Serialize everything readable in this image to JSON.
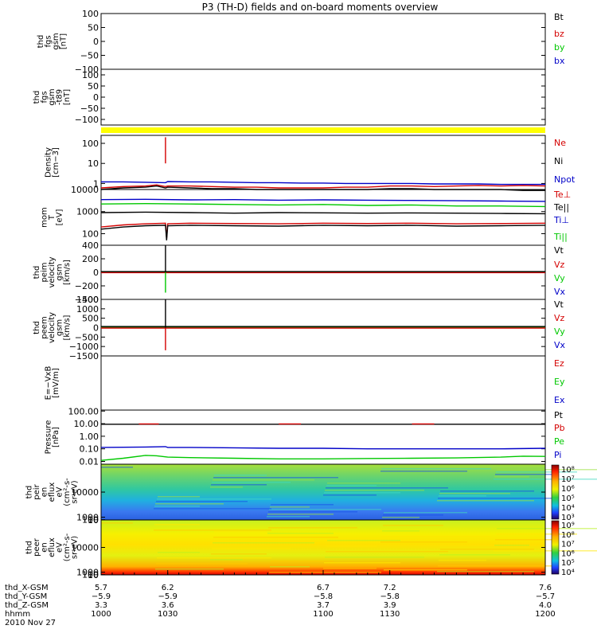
{
  "title": "P3 (TH-D) fields and on-board moments overview",
  "colors": {
    "black": "#000000",
    "red": "#d40000",
    "green": "#00c800",
    "blue": "#0000c8",
    "yellow": "#ffff00"
  },
  "chart_data": [
    {
      "type": "line",
      "id": "fgs1",
      "ylabel": [
        "thd",
        "fgs",
        "gsm",
        "[nT]"
      ],
      "ylim": [
        -100,
        100
      ],
      "yticks": [
        "100",
        "50",
        "0",
        "−50",
        "−100"
      ],
      "ytick_values": [
        100,
        50,
        0,
        -50,
        -100
      ],
      "legend": [
        {
          "name": "Bt",
          "color": "#000000"
        },
        {
          "name": "bz",
          "color": "#d40000"
        },
        {
          "name": "by",
          "color": "#00c800"
        },
        {
          "name": "bx",
          "color": "#0000c8"
        }
      ],
      "series": []
    },
    {
      "type": "line",
      "id": "fgs2",
      "ylabel": [
        "thd",
        "fgs",
        "gsm",
        "-t89",
        "[nT]"
      ],
      "ylim": [
        -125,
        125
      ],
      "yticks": [
        "100",
        "50",
        "0",
        "−50",
        "−100"
      ],
      "ytick_values": [
        100,
        50,
        0,
        -50,
        -100
      ],
      "legend": [],
      "series": []
    },
    {
      "type": "bar",
      "id": "mode-bar",
      "ylabel": [],
      "legend": [],
      "color": "#ffff00"
    },
    {
      "type": "line",
      "id": "density",
      "scale": "log",
      "ylabel": [
        "Density",
        "[cm−3]"
      ],
      "ylim": [
        0.5,
        250
      ],
      "yticks": [
        "100",
        "10",
        "1"
      ],
      "ytick_values": [
        100,
        10,
        1
      ],
      "legend": [
        {
          "name": "Ne",
          "color": "#d40000"
        },
        {
          "name": "Ni",
          "color": "#000000"
        },
        {
          "name": "Npot",
          "color": "#0000c8"
        }
      ],
      "series": [
        {
          "color": "#0000c8",
          "x": [
            1000,
            1010,
            1020,
            1029,
            1030,
            1040,
            1050,
            1060,
            1070,
            1080,
            1090,
            1100,
            1110,
            1120,
            1130,
            1140,
            1150,
            1160,
            1170,
            1180,
            1190,
            1200
          ],
          "values": [
            1.2,
            1.2,
            1.15,
            1.1,
            1.25,
            1.2,
            1.2,
            1.15,
            1.1,
            1.1,
            1.05,
            1.05,
            1.0,
            1.0,
            1.0,
            1.0,
            0.95,
            0.95,
            0.95,
            0.9,
            0.9,
            0.9
          ]
        },
        {
          "color": "#d40000",
          "x": [
            1000,
            1010,
            1020,
            1025,
            1029,
            1030,
            1040,
            1050,
            1060,
            1070,
            1080,
            1090,
            1100,
            1110,
            1120,
            1130,
            1140,
            1150,
            1160,
            1170,
            1180,
            1190,
            1200
          ],
          "values": [
            0.6,
            0.7,
            0.75,
            0.85,
            0.7,
            0.75,
            0.75,
            0.7,
            0.65,
            0.65,
            0.6,
            0.6,
            0.6,
            0.65,
            0.65,
            0.75,
            0.75,
            0.7,
            0.75,
            0.8,
            0.75,
            0.8,
            0.75
          ]
        },
        {
          "color": "#000000",
          "x": [
            1000,
            1010,
            1020,
            1025,
            1029,
            1030,
            1040,
            1050,
            1060,
            1070,
            1080,
            1090,
            1100,
            1110,
            1120,
            1130,
            1140,
            1150,
            1160,
            1170,
            1180,
            1190,
            1200
          ],
          "values": [
            0.5,
            0.6,
            0.65,
            0.75,
            0.6,
            0.65,
            0.6,
            0.55,
            0.55,
            0.5,
            0.5,
            0.5,
            0.5,
            0.5,
            0.5,
            0.55,
            0.55,
            0.5,
            0.5,
            0.5,
            0.5,
            0.45,
            0.45
          ]
        },
        {
          "color": "#d40000",
          "x": [
            1029,
            1029.01
          ],
          "values": [
            10,
            200
          ]
        }
      ]
    },
    {
      "type": "line",
      "id": "temp",
      "scale": "log",
      "ylabel": [
        "mom",
        "T",
        "[eV]"
      ],
      "ylim": [
        30,
        10000
      ],
      "yticks": [
        "10000",
        "1000",
        "100"
      ],
      "ytick_values": [
        10000,
        1000,
        100
      ],
      "legend": [
        {
          "name": "Te⊥",
          "color": "#d40000"
        },
        {
          "name": "Te||",
          "color": "#000000"
        },
        {
          "name": "Ti⊥",
          "color": "#0000c8"
        },
        {
          "name": "Ti||",
          "color": "#00c800"
        }
      ],
      "series": [
        {
          "color": "#0000c8",
          "x": [
            1000,
            1020,
            1040,
            1060,
            1080,
            1100,
            1120,
            1140,
            1160,
            1180,
            1200
          ],
          "values": [
            3500,
            3600,
            3400,
            3500,
            3300,
            3400,
            3300,
            3200,
            3100,
            3000,
            2900
          ]
        },
        {
          "color": "#00c800",
          "x": [
            1000,
            1020,
            1040,
            1060,
            1080,
            1100,
            1120,
            1140,
            1160,
            1180,
            1200
          ],
          "values": [
            2200,
            2300,
            2200,
            2100,
            2000,
            2100,
            1900,
            2000,
            1800,
            1800,
            1700
          ]
        },
        {
          "color": "#000000",
          "x": [
            1000,
            1020,
            1040,
            1060,
            1080,
            1100,
            1120,
            1140,
            1160,
            1180,
            1200
          ],
          "values": [
            900,
            950,
            900,
            850,
            900,
            880,
            850,
            870,
            850,
            820,
            800
          ]
        },
        {
          "color": "#d40000",
          "x": [
            1000,
            1010,
            1020,
            1029,
            1029.5,
            1030,
            1040,
            1060,
            1080,
            1100,
            1120,
            1140,
            1160,
            1180,
            1200
          ],
          "values": [
            200,
            250,
            280,
            300,
            60,
            280,
            300,
            290,
            280,
            300,
            290,
            300,
            280,
            290,
            300
          ]
        },
        {
          "color": "#000000",
          "x": [
            1000,
            1010,
            1020,
            1029,
            1029.5,
            1030,
            1040,
            1060,
            1080,
            1100,
            1120,
            1140,
            1160,
            1180,
            1200
          ],
          "values": [
            160,
            200,
            230,
            240,
            50,
            230,
            240,
            230,
            220,
            240,
            230,
            240,
            220,
            230,
            240
          ]
        }
      ]
    },
    {
      "type": "line",
      "id": "peim",
      "ylabel": [
        "thd",
        "peim",
        "velocity",
        "gsm",
        "[km/s]"
      ],
      "ylim": [
        -400,
        400
      ],
      "yticks": [
        "400",
        "200",
        "0",
        "−200",
        "−400"
      ],
      "ytick_values": [
        400,
        200,
        0,
        -200,
        -400
      ],
      "legend": [
        {
          "name": "Vt",
          "color": "#000000"
        },
        {
          "name": "Vz",
          "color": "#d40000"
        },
        {
          "name": "Vy",
          "color": "#00c800"
        },
        {
          "name": "Vx",
          "color": "#0000c8"
        }
      ],
      "series": [
        {
          "color": "#0000c8",
          "x": [
            1000,
            1200
          ],
          "values": [
            0,
            0
          ]
        },
        {
          "color": "#00c800",
          "x": [
            1000,
            1200
          ],
          "values": [
            5,
            5
          ]
        },
        {
          "color": "#d40000",
          "x": [
            1000,
            1200
          ],
          "values": [
            -5,
            -5
          ]
        },
        {
          "color": "#000000",
          "x": [
            1000,
            1200
          ],
          "values": [
            10,
            10
          ]
        },
        {
          "color": "#000000",
          "x": [
            1029,
            1029.01
          ],
          "values": [
            0,
            400
          ]
        },
        {
          "color": "#00c800",
          "x": [
            1029,
            1029.01
          ],
          "values": [
            0,
            -300
          ]
        }
      ]
    },
    {
      "type": "line",
      "id": "peem",
      "ylabel": [
        "thd",
        "peem",
        "velocity",
        "gsm",
        "[km/s]"
      ],
      "ylim": [
        -1500,
        1500
      ],
      "yticks": [
        "1500",
        "1000",
        "500",
        "0",
        "−500",
        "−1000",
        "−1500"
      ],
      "ytick_values": [
        1500,
        1000,
        500,
        0,
        -500,
        -1000,
        -1500
      ],
      "legend": [
        {
          "name": "Vt",
          "color": "#000000"
        },
        {
          "name": "Vz",
          "color": "#d40000"
        },
        {
          "name": "Vy",
          "color": "#00c800"
        },
        {
          "name": "Vx",
          "color": "#0000c8"
        }
      ],
      "series": [
        {
          "color": "#0000c8",
          "x": [
            1000,
            1200
          ],
          "values": [
            0,
            0
          ]
        },
        {
          "color": "#00c800",
          "x": [
            1000,
            1200
          ],
          "values": [
            20,
            20
          ]
        },
        {
          "color": "#d40000",
          "x": [
            1000,
            1200
          ],
          "values": [
            -20,
            -20
          ]
        },
        {
          "color": "#000000",
          "x": [
            1000,
            1200
          ],
          "values": [
            60,
            60
          ]
        },
        {
          "color": "#000000",
          "x": [
            1029,
            1029.01
          ],
          "values": [
            0,
            1500
          ]
        },
        {
          "color": "#d40000",
          "x": [
            1029,
            1029.01
          ],
          "values": [
            0,
            -1200
          ]
        }
      ]
    },
    {
      "type": "line",
      "id": "efield",
      "ylabel": [
        "E=−VxB",
        "[mV/m]"
      ],
      "ylim": [
        0,
        1
      ],
      "yticks": [],
      "ytick_values": [],
      "legend": [
        {
          "name": "Ez",
          "color": "#d40000"
        },
        {
          "name": "Ey",
          "color": "#00c800"
        },
        {
          "name": "Ex",
          "color": "#0000c8"
        }
      ],
      "series": []
    },
    {
      "type": "line",
      "id": "pressure",
      "scale": "log",
      "ylabel": [
        "Pressure",
        "[nPa]"
      ],
      "ylim": [
        0.006,
        120
      ],
      "yticks": [
        "100.00",
        "10.00",
        "1.00",
        "0.10",
        "0.01"
      ],
      "ytick_values": [
        100,
        10,
        1,
        0.1,
        0.01
      ],
      "legend": [
        {
          "name": "Pt",
          "color": "#000000"
        },
        {
          "name": "Pb",
          "color": "#d40000"
        },
        {
          "name": "Pe",
          "color": "#00c800"
        },
        {
          "name": "Pi",
          "color": "#0000c8"
        }
      ],
      "series": [
        {
          "color": "#000000",
          "x": [
            1000,
            1200
          ],
          "values": [
            9,
            9
          ]
        },
        {
          "color": "#d40000",
          "x": [
            1017,
            1026
          ],
          "values": [
            9.5,
            9.5
          ]
        },
        {
          "color": "#d40000",
          "x": [
            1080,
            1090
          ],
          "values": [
            9.5,
            9.5
          ]
        },
        {
          "color": "#d40000",
          "x": [
            1140,
            1150
          ],
          "values": [
            9.5,
            9.5
          ]
        },
        {
          "color": "#0000c8",
          "x": [
            1000,
            1020,
            1029,
            1030,
            1040,
            1060,
            1080,
            1100,
            1120,
            1140,
            1160,
            1180,
            1200
          ],
          "values": [
            0.13,
            0.14,
            0.15,
            0.13,
            0.13,
            0.12,
            0.11,
            0.11,
            0.1,
            0.1,
            0.1,
            0.1,
            0.11
          ]
        },
        {
          "color": "#00c800",
          "x": [
            1000,
            1010,
            1020,
            1025,
            1030,
            1040,
            1060,
            1080,
            1100,
            1120,
            1140,
            1160,
            1180,
            1190,
            1200
          ],
          "values": [
            0.012,
            0.018,
            0.03,
            0.028,
            0.022,
            0.02,
            0.018,
            0.016,
            0.016,
            0.017,
            0.018,
            0.019,
            0.022,
            0.026,
            0.025
          ]
        }
      ]
    },
    {
      "type": "heatmap",
      "id": "peir",
      "ylabel": [
        "thd",
        "peir",
        "en",
        "eflux",
        "eV",
        "(cm²-s-",
        "sr-eV)"
      ],
      "ylim": [
        10,
        20000
      ],
      "yticks": [
        "10000",
        "1000",
        "100",
        "10"
      ],
      "ytick_values": [
        10000,
        1000,
        100,
        10
      ],
      "colorbar": [
        "10⁸",
        "10⁷",
        "10⁶",
        "10⁵",
        "10⁴",
        "10³"
      ]
    },
    {
      "type": "heatmap",
      "id": "peer",
      "ylabel": [
        "thd",
        "peer",
        "en",
        "eflux",
        "eV",
        "(cm²-s-",
        "sr-eV)"
      ],
      "ylim": [
        7,
        20000
      ],
      "yticks": [
        "10000",
        "1000",
        "100",
        "10"
      ],
      "ytick_values": [
        10000,
        1000,
        100,
        10
      ],
      "colorbar": [
        "10⁹",
        "10⁸",
        "10⁷",
        "10⁶",
        "10⁵",
        "10⁴"
      ]
    }
  ],
  "xaxis": {
    "minutes": [
      1000,
      1030,
      1100,
      1130,
      1200
    ],
    "row_labels": [
      "thd_X-GSM",
      "thd_Y-GSM",
      "thd_Z-GSM",
      "hhmm",
      "2010 Nov 27"
    ],
    "x_gsm": [
      "5.7",
      "6.2",
      "6.7",
      "7.2",
      "7.6"
    ],
    "y_gsm": [
      "−5.9",
      "−5.9",
      "−5.8",
      "−5.8",
      "−5.7"
    ],
    "z_gsm": [
      "3.3",
      "3.6",
      "3.7",
      "3.9",
      "4.0"
    ],
    "hhmm": [
      "1000",
      "1030",
      "1100",
      "1130",
      "1200"
    ]
  }
}
